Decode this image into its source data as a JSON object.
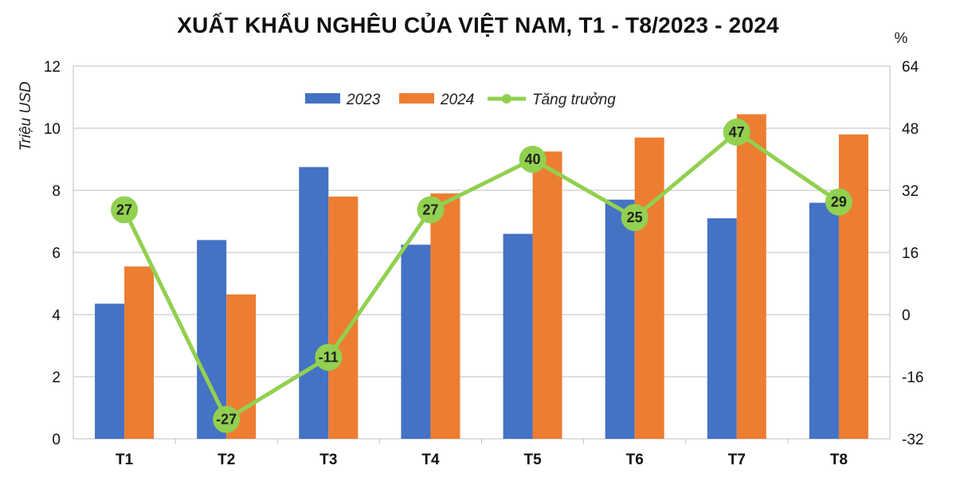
{
  "chart_data": {
    "type": "bar",
    "title": "XUẤT KHẨU NGHÊU CỦA VIỆT NAM, T1 - T8/2023 - 2024",
    "ylabel": "Triệu USD",
    "y2label": "%",
    "categories": [
      "T1",
      "T2",
      "T3",
      "T4",
      "T5",
      "T6",
      "T7",
      "T8"
    ],
    "ylim": [
      0,
      12
    ],
    "yticks": [
      0,
      2,
      4,
      6,
      8,
      10,
      12
    ],
    "y2lim": [
      -32,
      64
    ],
    "y2ticks": [
      -32,
      -16,
      0,
      16,
      32,
      48,
      64
    ],
    "grid": true,
    "legend_position": "top",
    "series": [
      {
        "name": "2023",
        "type": "bar",
        "axis": "left",
        "color": "#4472C4",
        "values": [
          4.35,
          6.4,
          8.75,
          6.25,
          6.6,
          7.7,
          7.1,
          7.6
        ]
      },
      {
        "name": "2024",
        "type": "bar",
        "axis": "left",
        "color": "#ED7D31",
        "values": [
          5.55,
          4.65,
          7.8,
          7.9,
          9.25,
          9.7,
          10.45,
          9.8
        ]
      },
      {
        "name": "Tăng trưởng",
        "type": "line",
        "axis": "right",
        "color": "#92D050",
        "values": [
          27,
          -27,
          -11,
          27,
          40,
          25,
          47,
          29
        ],
        "labels": [
          "27",
          "-27",
          "-11",
          "27",
          "40",
          "25",
          "47",
          "29"
        ]
      }
    ]
  }
}
